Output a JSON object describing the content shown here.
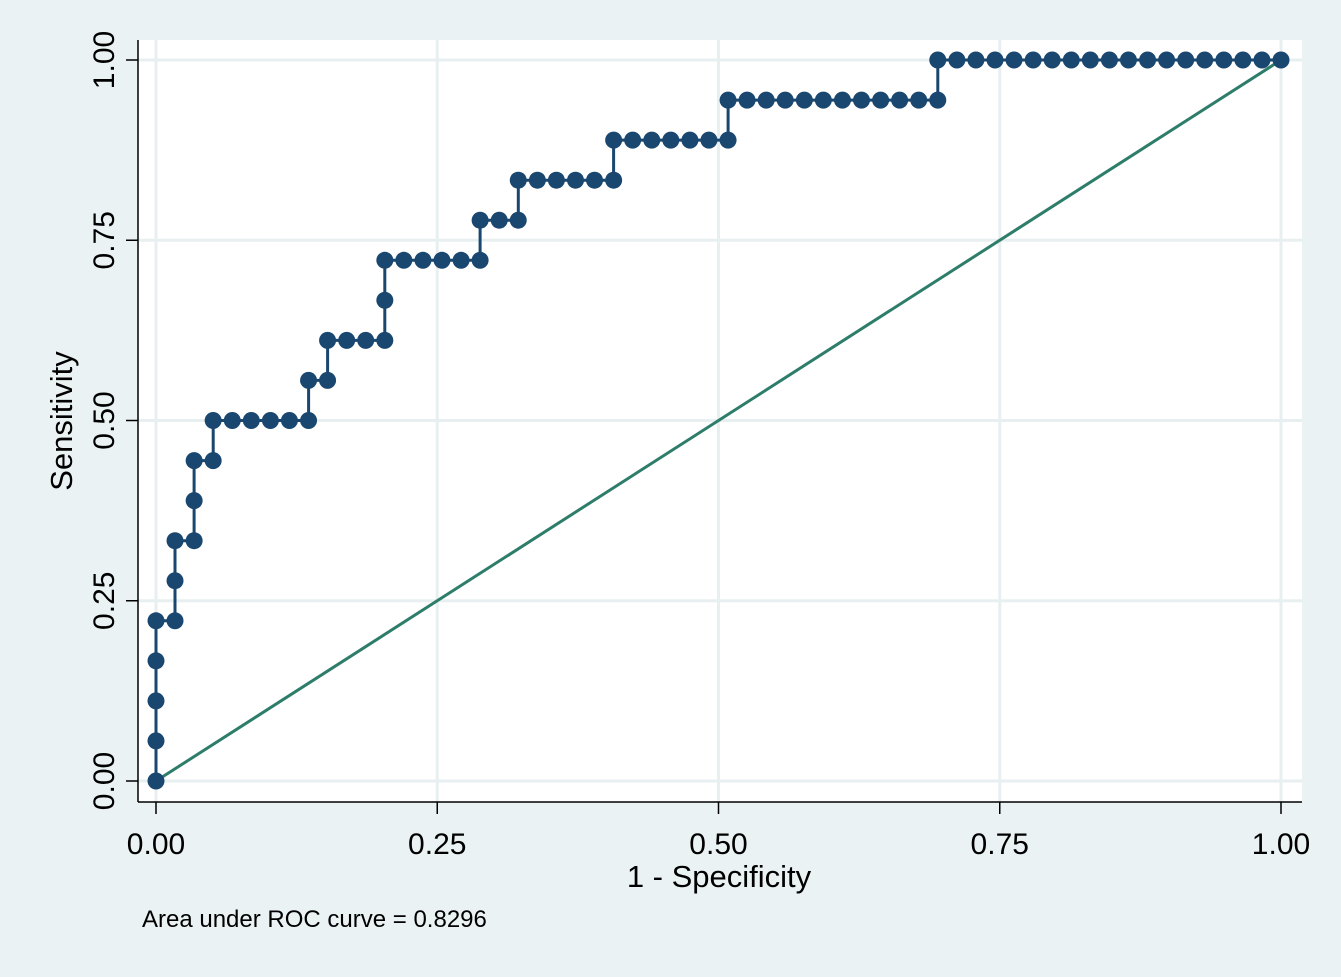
{
  "chart_data": {
    "type": "line",
    "title": "",
    "xlabel": "1 - Specificity",
    "ylabel": "Sensitivity",
    "xlim": [
      0,
      1
    ],
    "ylim": [
      0,
      1
    ],
    "xticks": [
      "0.00",
      "0.25",
      "0.50",
      "0.75",
      "1.00"
    ],
    "yticks": [
      "0.00",
      "0.25",
      "0.50",
      "0.75",
      "1.00"
    ],
    "grid": true,
    "legend": "none",
    "note": "Area under ROC curve = 0.8296",
    "colors": {
      "roc": "#1a476f",
      "reference": "#2e7d6b",
      "plot_bg": "#ffffff",
      "outer_bg": "#eaf2f3",
      "grid": "#e8eff0"
    },
    "series": [
      {
        "name": "",
        "x": [
          0,
          0,
          0,
          0,
          0,
          0.0169,
          0.0169,
          0.0169,
          0.0339,
          0.0339,
          0.0339,
          0.0508,
          0.0508,
          0.0678,
          0.0847,
          0.1017,
          0.1186,
          0.1356,
          0.1356,
          0.1525,
          0.1525,
          0.1695,
          0.1864,
          0.2034,
          0.2034,
          0.2034,
          0.2203,
          0.2373,
          0.2542,
          0.2712,
          0.2881,
          0.2881,
          0.3051,
          0.322,
          0.322,
          0.339,
          0.3559,
          0.3729,
          0.3898,
          0.4068,
          0.4068,
          0.4237,
          0.4407,
          0.4576,
          0.4746,
          0.4915,
          0.5085,
          0.5085,
          0.5254,
          0.5424,
          0.5593,
          0.5763,
          0.5932,
          0.6102,
          0.6271,
          0.6441,
          0.661,
          0.678,
          0.6949,
          0.6949,
          0.7119,
          0.7288,
          0.7458,
          0.7627,
          0.7797,
          0.7966,
          0.8136,
          0.8305,
          0.8475,
          0.8644,
          0.8814,
          0.8983,
          0.9153,
          0.9322,
          0.9492,
          0.9661,
          0.9831,
          1.0
        ],
        "y": [
          0,
          0.0556,
          0.1111,
          0.1667,
          0.2222,
          0.2222,
          0.2778,
          0.3333,
          0.3333,
          0.3889,
          0.4444,
          0.4444,
          0.5,
          0.5,
          0.5,
          0.5,
          0.5,
          0.5,
          0.5556,
          0.5556,
          0.6111,
          0.6111,
          0.6111,
          0.6111,
          0.6667,
          0.7222,
          0.7222,
          0.7222,
          0.7222,
          0.7222,
          0.7222,
          0.7778,
          0.7778,
          0.7778,
          0.8333,
          0.8333,
          0.8333,
          0.8333,
          0.8333,
          0.8333,
          0.8889,
          0.8889,
          0.8889,
          0.8889,
          0.8889,
          0.8889,
          0.8889,
          0.9444,
          0.9444,
          0.9444,
          0.9444,
          0.9444,
          0.9444,
          0.9444,
          0.9444,
          0.9444,
          0.9444,
          0.9444,
          0.9444,
          1.0,
          1.0,
          1.0,
          1.0,
          1.0,
          1.0,
          1.0,
          1.0,
          1.0,
          1.0,
          1.0,
          1.0,
          1.0,
          1.0,
          1.0,
          1.0,
          1.0,
          1.0,
          1.0
        ]
      },
      {
        "name": "",
        "x": [
          0,
          1
        ],
        "y": [
          0,
          1
        ]
      }
    ]
  }
}
